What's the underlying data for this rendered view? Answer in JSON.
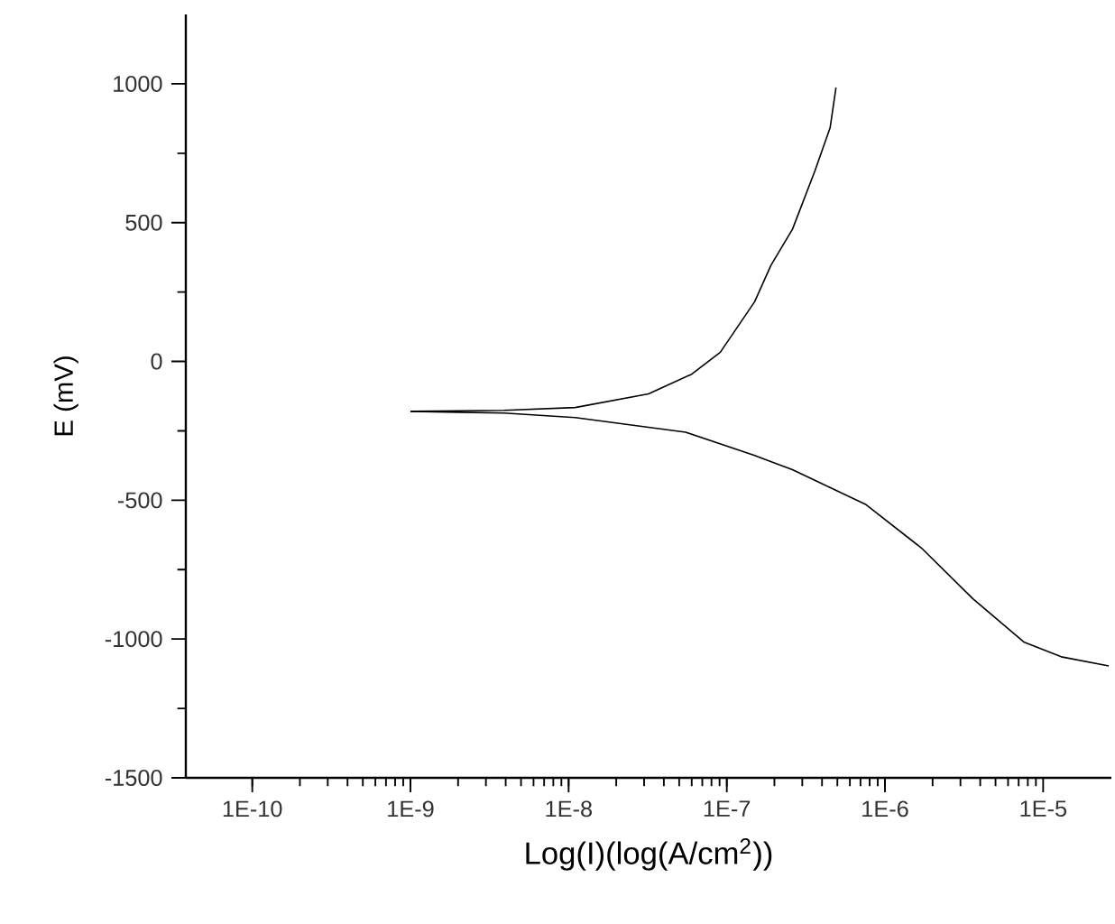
{
  "chart_data": {
    "type": "line",
    "xlabel": "Log(I)(log(A/cm$^{2}$))",
    "ylabel": "E (mV)",
    "log": "x",
    "xlim": [
      3.8e-11,
      2.7e-05
    ],
    "ylim": [
      -1500,
      1250
    ],
    "xticks": [
      {
        "value": 1e-10,
        "label": "1E-10"
      },
      {
        "value": 1e-09,
        "label": "1E-9"
      },
      {
        "value": 1e-08,
        "label": "1E-8"
      },
      {
        "value": 1e-07,
        "label": "1E-7"
      },
      {
        "value": 1e-06,
        "label": "1E-6"
      },
      {
        "value": 1e-05,
        "label": "1E-5"
      }
    ],
    "yticks": [
      -1500,
      -1000,
      -500,
      0,
      500,
      1000
    ],
    "series": [
      {
        "color": "#000000",
        "x": [
          1e-09,
          3.9e-09,
          1.1e-08,
          3.2e-08,
          6e-08,
          9.1e-08,
          1.5e-07,
          1.9e-07,
          2.6e-07,
          3.6e-07,
          4.5e-07,
          4.9e-07
        ],
        "values": [
          -180,
          -176,
          -166,
          -117,
          -46,
          33,
          215,
          346,
          476,
          685,
          842,
          986
        ]
      },
      {
        "color": "#000000",
        "x": [
          1e-09,
          3.9e-09,
          1.1e-08,
          5.5e-08,
          1.5e-07,
          2.6e-07,
          7.6e-07,
          1.7e-06,
          3.6e-06,
          7.6e-06,
          1.3e-05,
          2.6e-05
        ],
        "values": [
          -180,
          -186,
          -202,
          -255,
          -339,
          -390,
          -516,
          -672,
          -855,
          -1012,
          -1064,
          -1097
        ]
      }
    ]
  }
}
